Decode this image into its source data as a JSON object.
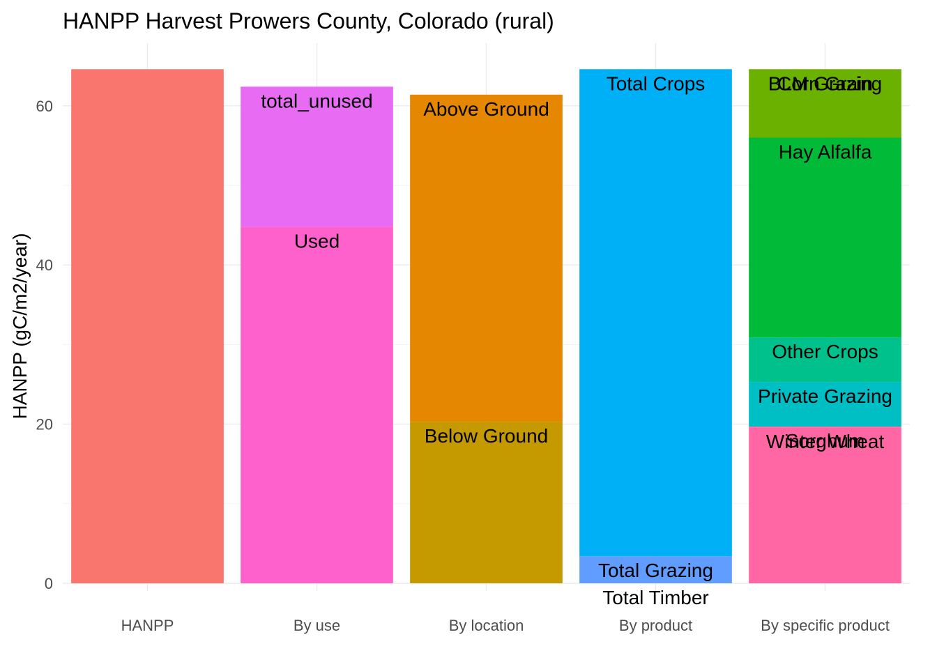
{
  "chart_data": {
    "type": "bar",
    "stacked": true,
    "title": "HANPP Harvest Prowers County, Colorado (rural)",
    "xlabel": "",
    "ylabel": "HANPP (gC/m2/year)",
    "ylim": [
      0,
      65
    ],
    "yticks": [
      0,
      20,
      40,
      60
    ],
    "grid": true,
    "legend": "none",
    "categories": [
      "HANPP",
      "By use",
      "By location",
      "By product",
      "By specific product"
    ],
    "bars": [
      {
        "category": "HANPP",
        "segments": [
          {
            "label": "",
            "value": 64.6,
            "color": "#F8766D"
          }
        ]
      },
      {
        "category": "By use",
        "segments": [
          {
            "label": "Used",
            "value": 44.8,
            "color": "#FF61CC"
          },
          {
            "label": "total_unused",
            "value": 17.6,
            "color": "#E76BF3"
          }
        ]
      },
      {
        "category": "By location",
        "segments": [
          {
            "label": "Below Ground",
            "value": 20.3,
            "color": "#C49A00"
          },
          {
            "label": "Above Ground",
            "value": 41.1,
            "color": "#E58700"
          }
        ]
      },
      {
        "category": "By product",
        "segments": [
          {
            "label": "Total Timber",
            "value": 0.0,
            "color": "#619CFF"
          },
          {
            "label": "Total Grazing",
            "value": 3.4,
            "color": "#619CFF"
          },
          {
            "label": "Total Crops",
            "value": 61.2,
            "color": "#00B0F6"
          }
        ]
      },
      {
        "category": "By specific product",
        "segments": [
          {
            "label": "Winter Wheat",
            "value": 19.6,
            "color": "#FF67A4"
          },
          {
            "label": "Sorghum",
            "value": 0.1,
            "color": "#FF67A4"
          },
          {
            "label": "Private Grazing",
            "value": 5.6,
            "color": "#00BFC4"
          },
          {
            "label": "Other Crops",
            "value": 5.6,
            "color": "#00C08B"
          },
          {
            "label": "Hay Alfalfa",
            "value": 25.1,
            "color": "#00BA38"
          },
          {
            "label": "Corn Grain",
            "value": 8.6,
            "color": "#6BB100"
          },
          {
            "label": "BLM Grazing",
            "value": 0.0,
            "color": "#6BB100"
          }
        ]
      }
    ]
  }
}
